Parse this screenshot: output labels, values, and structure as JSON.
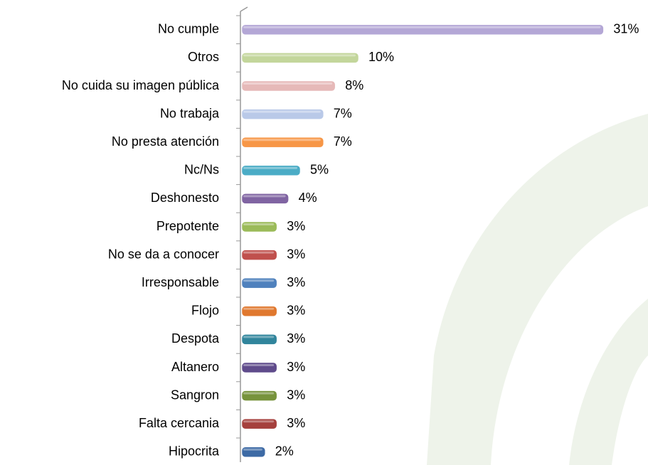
{
  "chart_data": {
    "type": "barh",
    "categories": [
      "No cumple",
      "Otros",
      "No cuida su imagen pública",
      "No trabaja",
      "No presta atención",
      "Nc/Ns",
      "Deshonesto",
      "Prepotente",
      "No se da a conocer",
      "Irresponsable",
      "Flojo",
      "Despota",
      "Altanero",
      "Sangron",
      "Falta cercania",
      "Hipocrita"
    ],
    "values": [
      31,
      10,
      8,
      7,
      7,
      5,
      4,
      3,
      3,
      3,
      3,
      3,
      3,
      3,
      3,
      2
    ],
    "value_labels": [
      "31%",
      "10%",
      "8%",
      "7%",
      "7%",
      "5%",
      "4%",
      "3%",
      "3%",
      "3%",
      "3%",
      "3%",
      "3%",
      "3%",
      "3%",
      "2%"
    ],
    "colors": [
      "#b4a7d6",
      "#c3d69b",
      "#e6b9b8",
      "#b9c9e8",
      "#f79646",
      "#4bacc6",
      "#8064a2",
      "#9bbb59",
      "#c0504d",
      "#4f81bd",
      "#e0782e",
      "#31859c",
      "#5f4b8b",
      "#77933c",
      "#a5403d",
      "#3d6aa5"
    ]
  }
}
